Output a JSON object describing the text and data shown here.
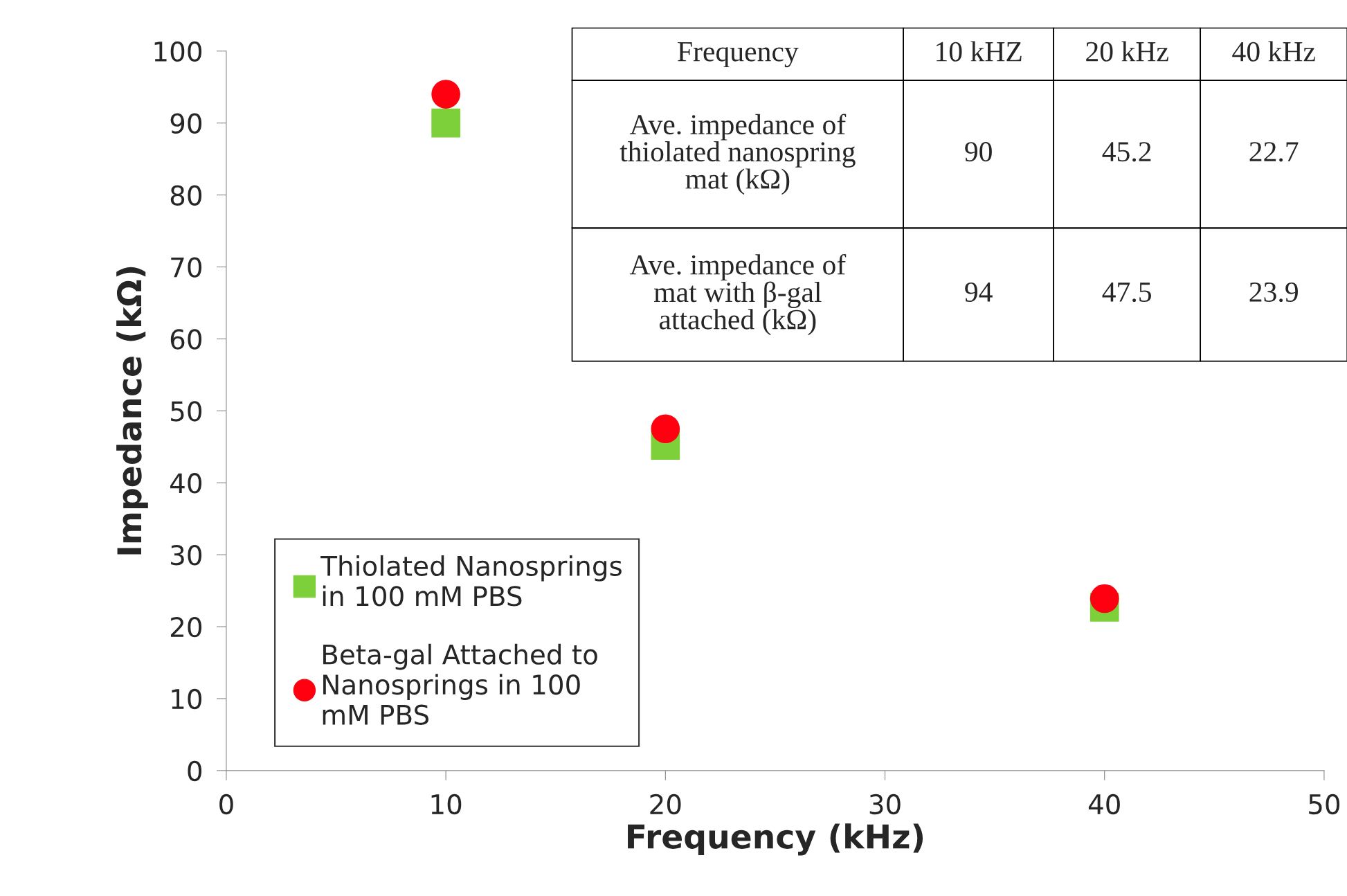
{
  "chart_data": {
    "type": "scatter",
    "xlabel": "Frequency (kHz)",
    "ylabel": "Impedance (kΩ)",
    "x": [
      10,
      20,
      40
    ],
    "series": [
      {
        "name": "Thiolated Nanosprings\nin 100 mM PBS",
        "color": "#7ed03a",
        "marker": "square",
        "values": [
          90,
          45.2,
          22.7
        ]
      },
      {
        "name": "Beta-gal Attached to\nNanosprings in 100\nmM PBS",
        "color": "#ff0010",
        "marker": "circle",
        "values": [
          94,
          47.5,
          23.9
        ]
      }
    ],
    "annotations": [
      "Frequency",
      "10 kHZ",
      "20 kHz",
      "40 kHz",
      "Ave. impedance of\nthiolated nanospring\nmat (kΩ)",
      "90",
      "45.2",
      "22.7",
      "Ave. impedance of\nmat with β-gal\nattached (kΩ)",
      "94",
      "47.5",
      "23.9"
    ],
    "xlim": [
      0,
      50
    ],
    "xticks": [
      0,
      10,
      20,
      30,
      40,
      50
    ],
    "ylim": [
      0,
      100
    ],
    "yticks": [
      0,
      10,
      20,
      30,
      40,
      50,
      60,
      70,
      80,
      90,
      100
    ],
    "grid": false,
    "legend": "bottom left"
  }
}
